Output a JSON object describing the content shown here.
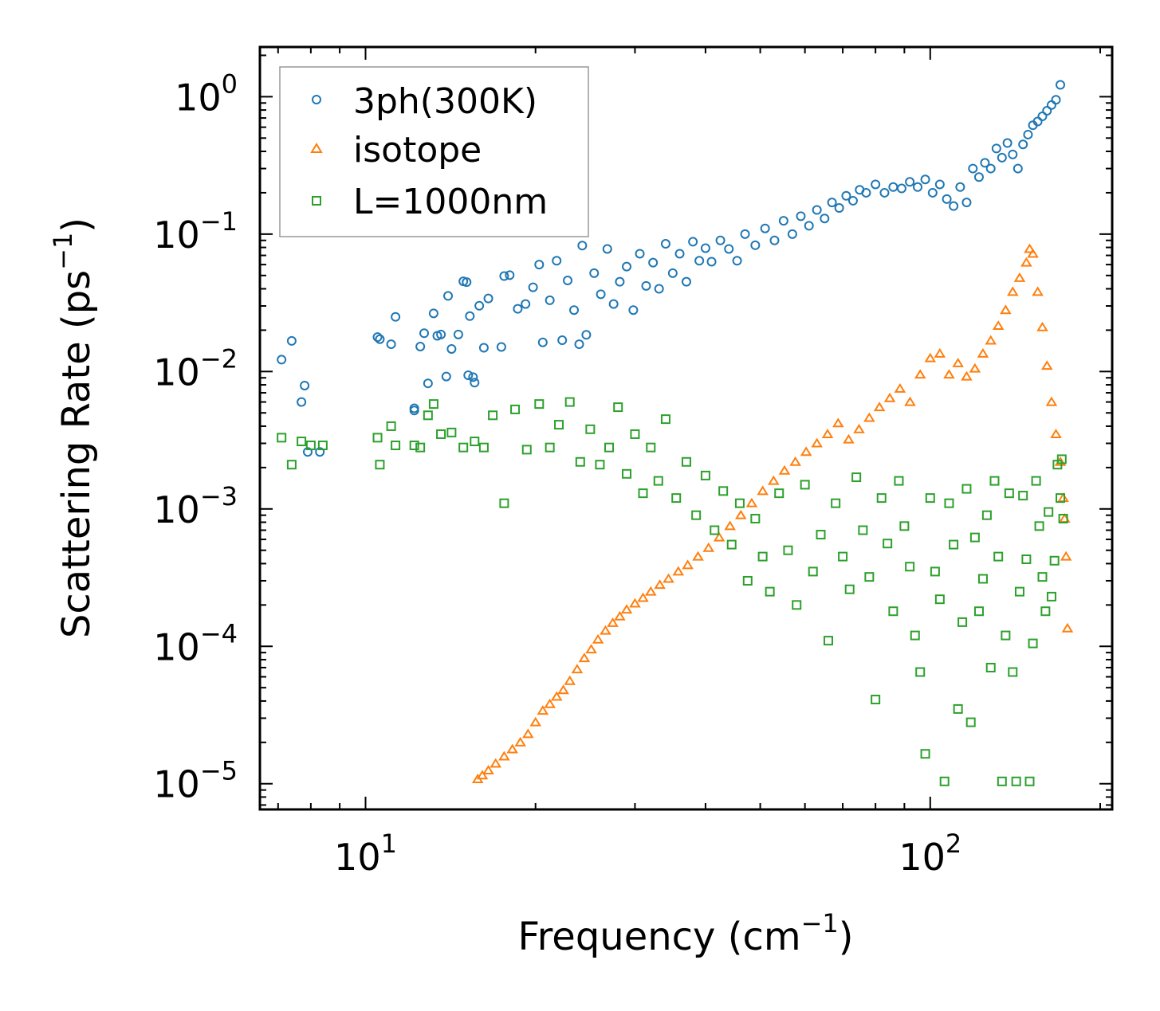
{
  "chart_data": {
    "type": "scatter",
    "title": "",
    "xlabel": "Frequency (cm",
    "xlabel_sup": "−1",
    "xlabel_end": ")",
    "ylabel": "Scattering Rate (ps",
    "ylabel_sup": "−1",
    "ylabel_end": ")",
    "xscale": "log",
    "yscale": "log",
    "xlim": [
      6.5,
      210
    ],
    "ylim": [
      6.5e-06,
      2.3
    ],
    "grid": false,
    "legend_position": "top-left",
    "x_ticks": [
      {
        "value": 10,
        "base": "10",
        "exp": "1"
      },
      {
        "value": 100,
        "base": "10",
        "exp": "2"
      }
    ],
    "y_ticks": [
      {
        "value": 1,
        "base": "10",
        "exp": "0"
      },
      {
        "value": 0.1,
        "base": "10",
        "exp": "−1"
      },
      {
        "value": 0.01,
        "base": "10",
        "exp": "−2"
      },
      {
        "value": 0.001,
        "base": "10",
        "exp": "−3"
      },
      {
        "value": 0.0001,
        "base": "10",
        "exp": "−4"
      },
      {
        "value": 1e-05,
        "base": "10",
        "exp": "−5"
      }
    ],
    "series": [
      {
        "name": "3ph(300K)",
        "marker": "circle",
        "color": "#1f77b4",
        "points": [
          [
            7.1,
            0.0122
          ],
          [
            7.4,
            0.0167
          ],
          [
            7.7,
            0.006
          ],
          [
            7.8,
            0.0079
          ],
          [
            7.9,
            0.0026
          ],
          [
            8.3,
            0.0026
          ],
          [
            10.5,
            0.0178
          ],
          [
            10.6,
            0.0172
          ],
          [
            11.1,
            0.0158
          ],
          [
            11.3,
            0.025
          ],
          [
            12.2,
            0.0052
          ],
          [
            12.2,
            0.0054
          ],
          [
            12.5,
            0.0152
          ],
          [
            12.7,
            0.019
          ],
          [
            12.9,
            0.0082
          ],
          [
            13.2,
            0.0265
          ],
          [
            13.4,
            0.0182
          ],
          [
            13.6,
            0.0186
          ],
          [
            13.9,
            0.0092
          ],
          [
            14,
            0.0355
          ],
          [
            14.2,
            0.0146
          ],
          [
            14.6,
            0.0186
          ],
          [
            14.9,
            0.0453
          ],
          [
            15.1,
            0.0447
          ],
          [
            15.2,
            0.0094
          ],
          [
            15.3,
            0.0253
          ],
          [
            15.5,
            0.0091
          ],
          [
            15.6,
            0.0083
          ],
          [
            15.9,
            0.0301
          ],
          [
            16.2,
            0.0149
          ],
          [
            16.5,
            0.034
          ],
          [
            17.4,
            0.0151
          ],
          [
            17.6,
            0.0495
          ],
          [
            18,
            0.0503
          ],
          [
            18.6,
            0.0286
          ],
          [
            19.2,
            0.031
          ],
          [
            19.8,
            0.041
          ],
          [
            20.3,
            0.06
          ],
          [
            20.6,
            0.0163
          ],
          [
            21.2,
            0.033
          ],
          [
            21.8,
            0.064
          ],
          [
            22.3,
            0.0169
          ],
          [
            22.8,
            0.046
          ],
          [
            23.4,
            0.028
          ],
          [
            23.9,
            0.0158
          ],
          [
            24.2,
            0.0825
          ],
          [
            24.6,
            0.0185
          ],
          [
            25.4,
            0.052
          ],
          [
            26.1,
            0.0365
          ],
          [
            26.8,
            0.078
          ],
          [
            27.5,
            0.031
          ],
          [
            28.2,
            0.045
          ],
          [
            29,
            0.058
          ],
          [
            29.8,
            0.028
          ],
          [
            30.6,
            0.072
          ],
          [
            31.4,
            0.042
          ],
          [
            32.3,
            0.062
          ],
          [
            33.1,
            0.04
          ],
          [
            34,
            0.085
          ],
          [
            35,
            0.052
          ],
          [
            36,
            0.072
          ],
          [
            37,
            0.045
          ],
          [
            38,
            0.088
          ],
          [
            39,
            0.064
          ],
          [
            40,
            0.079
          ],
          [
            41,
            0.063
          ],
          [
            42.5,
            0.09
          ],
          [
            44,
            0.078
          ],
          [
            45.5,
            0.064
          ],
          [
            47,
            0.1
          ],
          [
            49,
            0.083
          ],
          [
            51,
            0.11
          ],
          [
            53,
            0.09
          ],
          [
            55,
            0.125
          ],
          [
            57,
            0.1
          ],
          [
            59,
            0.135
          ],
          [
            61,
            0.115
          ],
          [
            63,
            0.15
          ],
          [
            65,
            0.13
          ],
          [
            67,
            0.17
          ],
          [
            69,
            0.155
          ],
          [
            71,
            0.19
          ],
          [
            73,
            0.175
          ],
          [
            75,
            0.21
          ],
          [
            77,
            0.2
          ],
          [
            80,
            0.23
          ],
          [
            83,
            0.2
          ],
          [
            86,
            0.22
          ],
          [
            89,
            0.215
          ],
          [
            92,
            0.24
          ],
          [
            95,
            0.22
          ],
          [
            98,
            0.25
          ],
          [
            101,
            0.2
          ],
          [
            104,
            0.23
          ],
          [
            107,
            0.18
          ],
          [
            110,
            0.16
          ],
          [
            113,
            0.22
          ],
          [
            116,
            0.17
          ],
          [
            119,
            0.3
          ],
          [
            122,
            0.26
          ],
          [
            125,
            0.33
          ],
          [
            128,
            0.3
          ],
          [
            131,
            0.42
          ],
          [
            134,
            0.36
          ],
          [
            137,
            0.46
          ],
          [
            140,
            0.38
          ],
          [
            143,
            0.3
          ],
          [
            146,
            0.45
          ],
          [
            149,
            0.53
          ],
          [
            152,
            0.62
          ],
          [
            155,
            0.66
          ],
          [
            158,
            0.72
          ],
          [
            161,
            0.79
          ],
          [
            164,
            0.87
          ],
          [
            167,
            0.95
          ],
          [
            170,
            1.22
          ]
        ]
      },
      {
        "name": "isotope",
        "marker": "triangle",
        "color": "#ff7f0e",
        "points": [
          [
            15.8,
            1.08e-05
          ],
          [
            16.1,
            1.15e-05
          ],
          [
            16.5,
            1.25e-05
          ],
          [
            17,
            1.4e-05
          ],
          [
            17.6,
            1.58e-05
          ],
          [
            18.2,
            1.78e-05
          ],
          [
            18.8,
            2e-05
          ],
          [
            19.4,
            2.3e-05
          ],
          [
            20,
            2.8e-05
          ],
          [
            20.6,
            3.4e-05
          ],
          [
            21.2,
            3.8e-05
          ],
          [
            21.8,
            4.3e-05
          ],
          [
            22.4,
            4.8e-05
          ],
          [
            23,
            5.6e-05
          ],
          [
            23.7,
            6.8e-05
          ],
          [
            24.4,
            8.2e-05
          ],
          [
            25.1,
            9.5e-05
          ],
          [
            25.8,
            0.000112
          ],
          [
            26.6,
            0.00013
          ],
          [
            27.4,
            0.000148
          ],
          [
            28.2,
            0.000165
          ],
          [
            29,
            0.000185
          ],
          [
            30,
            0.000205
          ],
          [
            31,
            0.000225
          ],
          [
            32,
            0.00025
          ],
          [
            33.2,
            0.00028
          ],
          [
            34.4,
            0.00031
          ],
          [
            35.8,
            0.00035
          ],
          [
            37.2,
            0.00039
          ],
          [
            38.8,
            0.00045
          ],
          [
            40.5,
            0.00052
          ],
          [
            42.3,
            0.00062
          ],
          [
            44.2,
            0.00075
          ],
          [
            46.2,
            0.0009
          ],
          [
            48.3,
            0.0011
          ],
          [
            50.5,
            0.00135
          ],
          [
            52.8,
            0.0016
          ],
          [
            55.2,
            0.0019
          ],
          [
            57.7,
            0.0022
          ],
          [
            60.3,
            0.0026
          ],
          [
            63,
            0.003
          ],
          [
            65.8,
            0.0035
          ],
          [
            68.7,
            0.0042
          ],
          [
            71.7,
            0.0032
          ],
          [
            74.8,
            0.0038
          ],
          [
            78,
            0.0046
          ],
          [
            81.3,
            0.0055
          ],
          [
            84.8,
            0.0064
          ],
          [
            88.4,
            0.0075
          ],
          [
            92.1,
            0.006
          ],
          [
            96,
            0.0095
          ],
          [
            100,
            0.0125
          ],
          [
            104,
            0.0135
          ],
          [
            108,
            0.0095
          ],
          [
            112,
            0.0115
          ],
          [
            116,
            0.0092
          ],
          [
            120,
            0.0105
          ],
          [
            124,
            0.0135
          ],
          [
            128,
            0.0168
          ],
          [
            132,
            0.0215
          ],
          [
            136,
            0.028
          ],
          [
            140,
            0.038
          ],
          [
            144,
            0.048
          ],
          [
            148,
            0.062
          ],
          [
            150,
            0.078
          ],
          [
            152,
            0.072
          ],
          [
            155,
            0.038
          ],
          [
            158,
            0.021
          ],
          [
            161,
            0.011
          ],
          [
            164,
            0.006
          ],
          [
            167,
            0.0035
          ],
          [
            170,
            0.0022
          ],
          [
            172,
            0.0012
          ],
          [
            173,
            0.00085
          ],
          [
            174,
            0.00045
          ],
          [
            175,
            0.000135
          ]
        ]
      },
      {
        "name": "L=1000nm",
        "marker": "square",
        "color": "#2ca02c",
        "points": [
          [
            7.1,
            0.0033
          ],
          [
            7.4,
            0.0021
          ],
          [
            7.7,
            0.0031
          ],
          [
            8,
            0.0029
          ],
          [
            8.4,
            0.0029
          ],
          [
            10.5,
            0.0033
          ],
          [
            10.6,
            0.0021
          ],
          [
            11.1,
            0.004
          ],
          [
            11.3,
            0.0029
          ],
          [
            12.2,
            0.0029
          ],
          [
            12.5,
            0.0028
          ],
          [
            12.9,
            0.0048
          ],
          [
            13.2,
            0.0058
          ],
          [
            13.6,
            0.0035
          ],
          [
            14.2,
            0.0036
          ],
          [
            14.9,
            0.0028
          ],
          [
            15.6,
            0.0031
          ],
          [
            16.2,
            0.0028
          ],
          [
            16.8,
            0.0048
          ],
          [
            17.6,
            0.0011
          ],
          [
            18.4,
            0.0053
          ],
          [
            19.3,
            0.0027
          ],
          [
            20.3,
            0.0058
          ],
          [
            21.2,
            0.0028
          ],
          [
            22,
            0.0041
          ],
          [
            23,
            0.006
          ],
          [
            24,
            0.0022
          ],
          [
            25,
            0.0038
          ],
          [
            26,
            0.0021
          ],
          [
            27,
            0.0028
          ],
          [
            28,
            0.0055
          ],
          [
            29,
            0.0018
          ],
          [
            30,
            0.0035
          ],
          [
            31,
            0.0013
          ],
          [
            32,
            0.0028
          ],
          [
            33,
            0.0016
          ],
          [
            34,
            0.0045
          ],
          [
            35.5,
            0.0012
          ],
          [
            37,
            0.0022
          ],
          [
            38.5,
            0.0009
          ],
          [
            40,
            0.00175
          ],
          [
            41.5,
            0.0007
          ],
          [
            43,
            0.00135
          ],
          [
            44.5,
            0.00055
          ],
          [
            46,
            0.0011
          ],
          [
            47.5,
            0.0003
          ],
          [
            49,
            0.00085
          ],
          [
            50.5,
            0.00045
          ],
          [
            52,
            0.00025
          ],
          [
            54,
            0.0013
          ],
          [
            56,
            0.0005
          ],
          [
            58,
            0.0002
          ],
          [
            60,
            0.0015
          ],
          [
            62,
            0.00035
          ],
          [
            64,
            0.00065
          ],
          [
            66,
            0.00011
          ],
          [
            68,
            0.0011
          ],
          [
            70,
            0.00045
          ],
          [
            72,
            0.00026
          ],
          [
            74,
            0.0017
          ],
          [
            76,
            0.0007
          ],
          [
            78,
            0.00032
          ],
          [
            80,
            4.1e-05
          ],
          [
            82,
            0.0012
          ],
          [
            84,
            0.00056
          ],
          [
            86,
            0.00018
          ],
          [
            88,
            0.0016
          ],
          [
            90,
            0.00075
          ],
          [
            92,
            0.00038
          ],
          [
            94,
            0.00012
          ],
          [
            96,
            6.5e-05
          ],
          [
            98,
            1.65e-05
          ],
          [
            100,
            0.0012
          ],
          [
            102,
            0.00035
          ],
          [
            104,
            0.00022
          ],
          [
            106,
            1.04e-05
          ],
          [
            108,
            0.0011
          ],
          [
            110,
            0.00055
          ],
          [
            112,
            3.5e-05
          ],
          [
            114,
            0.00015
          ],
          [
            116,
            0.0014
          ],
          [
            118,
            2.8e-05
          ],
          [
            120,
            0.00062
          ],
          [
            122,
            0.00018
          ],
          [
            124,
            0.00031
          ],
          [
            126,
            0.0009
          ],
          [
            128,
            7e-05
          ],
          [
            130,
            0.0016
          ],
          [
            132,
            0.00045
          ],
          [
            134,
            1.04e-05
          ],
          [
            136,
            0.00012
          ],
          [
            138,
            0.0013
          ],
          [
            140,
            6.5e-05
          ],
          [
            142,
            1.04e-05
          ],
          [
            144,
            0.00025
          ],
          [
            146,
            0.00125
          ],
          [
            148,
            0.00043
          ],
          [
            150,
            1.04e-05
          ],
          [
            152,
            0.000105
          ],
          [
            154,
            0.0016
          ],
          [
            156,
            0.00075
          ],
          [
            158,
            0.00032
          ],
          [
            160,
            0.00018
          ],
          [
            162,
            0.00095
          ],
          [
            164,
            0.00023
          ],
          [
            166,
            0.00042
          ],
          [
            168,
            0.0021
          ],
          [
            170,
            0.0012
          ],
          [
            171,
            0.0023
          ],
          [
            172,
            0.00085
          ]
        ]
      }
    ]
  }
}
